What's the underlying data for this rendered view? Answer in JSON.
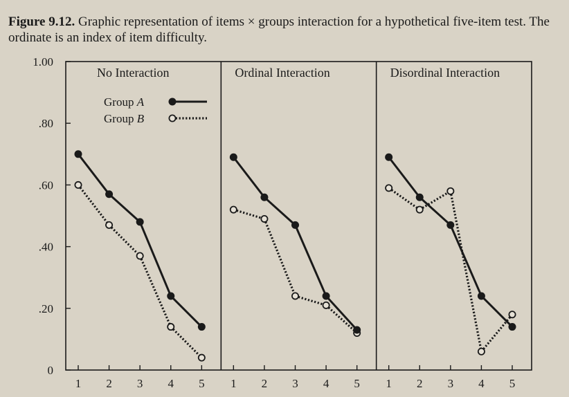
{
  "caption": {
    "figure_label": "Figure 9.12.",
    "text": "Graphic representation of items × groups interaction for a hypothetical five-item test. The ordinate is an index of item difficulty."
  },
  "chart_data": {
    "type": "line",
    "yticks": [
      0,
      0.2,
      0.4,
      0.6,
      0.8,
      1.0
    ],
    "ytick_labels": [
      "0",
      ".20",
      ".40",
      ".60",
      ".80",
      "1.00"
    ],
    "ylim": [
      0,
      1.0
    ],
    "xticks": [
      "1",
      "2",
      "3",
      "4",
      "5"
    ],
    "legend": {
      "placement": "inside first panel, upper-right",
      "entries": [
        {
          "label_prefix": "Group ",
          "label_italic": "A",
          "marker": "filled",
          "line": "solid"
        },
        {
          "label_prefix": "Group ",
          "label_italic": "B",
          "marker": "open",
          "line": "dotted"
        }
      ]
    },
    "panels": [
      {
        "title": "No Interaction",
        "series": [
          {
            "name": "Group A",
            "values": [
              0.7,
              0.57,
              0.48,
              0.24,
              0.14
            ]
          },
          {
            "name": "Group B",
            "values": [
              0.6,
              0.47,
              0.37,
              0.14,
              0.04
            ]
          }
        ]
      },
      {
        "title": "Ordinal Interaction",
        "series": [
          {
            "name": "Group A",
            "values": [
              0.69,
              0.56,
              0.47,
              0.24,
              0.13
            ]
          },
          {
            "name": "Group B",
            "values": [
              0.52,
              0.49,
              0.24,
              0.21,
              0.12
            ]
          }
        ]
      },
      {
        "title": "Disordinal Interaction",
        "series": [
          {
            "name": "Group A",
            "values": [
              0.69,
              0.56,
              0.47,
              0.24,
              0.14
            ]
          },
          {
            "name": "Group B",
            "values": [
              0.59,
              0.52,
              0.58,
              0.06,
              0.18
            ]
          }
        ]
      }
    ]
  }
}
